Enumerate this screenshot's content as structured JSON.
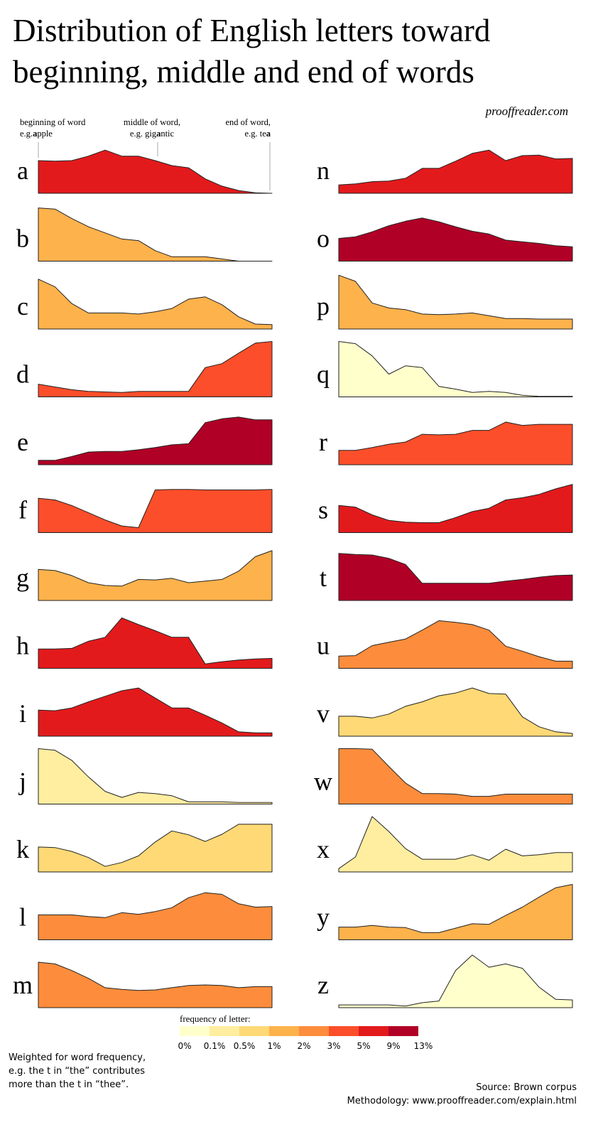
{
  "chart_data": {
    "type": "area",
    "title": [
      "Distribution of English letters toward",
      "beginning, middle and end of words"
    ],
    "site": "prooffreader.com",
    "annotations": [
      {
        "line1": "beginning of word",
        "prefix": "e.g.",
        "bold": "a",
        "suffix": "pple"
      },
      {
        "line1": "middle of word,",
        "prefix": "e.g. gig",
        "bold": "a",
        "suffix": "ntic"
      },
      {
        "line1": "end of word,",
        "prefix": "e.g. te",
        "bold": "a",
        "suffix": ""
      }
    ],
    "ylim": [
      0,
      100
    ],
    "series": [
      {
        "name": "a",
        "color": "#e31a1c",
        "values": [
          59,
          58,
          59,
          67,
          78,
          67,
          67,
          59,
          50,
          46,
          26,
          13,
          5,
          1,
          0
        ]
      },
      {
        "name": "b",
        "color": "#feb24c",
        "values": [
          96,
          94,
          77,
          62,
          51,
          40,
          37,
          19,
          8,
          8,
          8,
          4,
          0,
          0,
          0
        ]
      },
      {
        "name": "c",
        "color": "#feb24c",
        "values": [
          90,
          76,
          46,
          29,
          29,
          29,
          27,
          31,
          37,
          54,
          58,
          44,
          22,
          9,
          8
        ]
      },
      {
        "name": "d",
        "color": "#fc4e2a",
        "values": [
          23,
          18,
          13,
          10,
          9,
          8,
          10,
          10,
          10,
          10,
          53,
          60,
          79,
          97,
          100
        ]
      },
      {
        "name": "e",
        "color": "#b10026",
        "values": [
          8,
          8,
          15,
          23,
          24,
          24,
          27,
          31,
          36,
          38,
          76,
          83,
          86,
          81,
          81
        ]
      },
      {
        "name": "f",
        "color": "#fc4e2a",
        "values": [
          62,
          59,
          49,
          36,
          23,
          12,
          9,
          77,
          78,
          78,
          77,
          77,
          77,
          77,
          78
        ]
      },
      {
        "name": "g",
        "color": "#feb24c",
        "values": [
          56,
          54,
          45,
          32,
          27,
          26,
          38,
          37,
          40,
          32,
          35,
          38,
          53,
          79,
          90
        ]
      },
      {
        "name": "h",
        "color": "#e31a1c",
        "values": [
          35,
          35,
          36,
          49,
          56,
          91,
          79,
          68,
          56,
          56,
          8,
          12,
          15,
          17,
          18
        ]
      },
      {
        "name": "i",
        "color": "#e31a1c",
        "values": [
          47,
          46,
          51,
          62,
          72,
          82,
          87,
          69,
          51,
          51,
          38,
          24,
          8,
          6,
          6
        ]
      },
      {
        "name": "j",
        "color": "#ffeda0",
        "values": [
          100,
          97,
          79,
          49,
          23,
          12,
          21,
          19,
          15,
          4,
          4,
          4,
          3,
          3,
          3
        ]
      },
      {
        "name": "k",
        "color": "#fed976",
        "values": [
          45,
          44,
          37,
          26,
          10,
          17,
          29,
          54,
          74,
          67,
          55,
          68,
          86,
          86,
          86
        ]
      },
      {
        "name": "l",
        "color": "#fd8d3c",
        "values": [
          45,
          45,
          45,
          42,
          40,
          49,
          46,
          51,
          58,
          76,
          85,
          82,
          65,
          59,
          60
        ]
      },
      {
        "name": "m",
        "color": "#fd8d3c",
        "values": [
          82,
          79,
          67,
          53,
          36,
          33,
          31,
          32,
          36,
          40,
          41,
          40,
          36,
          38,
          38
        ]
      },
      {
        "name": "n",
        "color": "#e31a1c",
        "values": [
          15,
          17,
          21,
          22,
          27,
          45,
          45,
          58,
          72,
          78,
          59,
          68,
          69,
          62,
          63
        ]
      },
      {
        "name": "o",
        "color": "#b10026",
        "values": [
          41,
          44,
          53,
          64,
          72,
          78,
          71,
          62,
          54,
          49,
          38,
          35,
          32,
          28,
          26
        ]
      },
      {
        "name": "p",
        "color": "#feb24c",
        "values": [
          97,
          86,
          47,
          38,
          35,
          27,
          26,
          27,
          29,
          24,
          19,
          19,
          18,
          18,
          18
        ]
      },
      {
        "name": "q",
        "color": "#ffffcc",
        "values": [
          100,
          96,
          74,
          41,
          56,
          53,
          19,
          14,
          8,
          10,
          8,
          3,
          1,
          1,
          1
        ]
      },
      {
        "name": "r",
        "color": "#fc4e2a",
        "values": [
          26,
          26,
          31,
          37,
          41,
          55,
          54,
          55,
          62,
          62,
          77,
          71,
          73,
          73,
          73
        ]
      },
      {
        "name": "s",
        "color": "#e31a1c",
        "values": [
          49,
          46,
          32,
          22,
          19,
          18,
          18,
          27,
          38,
          44,
          59,
          63,
          69,
          79,
          87
        ]
      },
      {
        "name": "t",
        "color": "#b10026",
        "values": [
          85,
          83,
          82,
          76,
          65,
          31,
          31,
          31,
          31,
          31,
          35,
          38,
          42,
          45,
          46
        ]
      },
      {
        "name": "u",
        "color": "#fd8d3c",
        "values": [
          22,
          23,
          41,
          47,
          53,
          69,
          86,
          83,
          79,
          69,
          40,
          31,
          21,
          13,
          13
        ]
      },
      {
        "name": "v",
        "color": "#fed976",
        "values": [
          36,
          36,
          33,
          40,
          54,
          62,
          73,
          78,
          87,
          77,
          76,
          35,
          17,
          8,
          5
        ]
      },
      {
        "name": "w",
        "color": "#fd8d3c",
        "values": [
          100,
          100,
          99,
          68,
          38,
          19,
          19,
          18,
          14,
          14,
          18,
          18,
          18,
          18,
          18
        ]
      },
      {
        "name": "x",
        "color": "#ffeda0",
        "values": [
          6,
          27,
          100,
          73,
          42,
          23,
          23,
          23,
          31,
          21,
          41,
          29,
          31,
          35,
          35
        ]
      },
      {
        "name": "y",
        "color": "#feb24c",
        "values": [
          23,
          23,
          26,
          23,
          22,
          13,
          13,
          21,
          29,
          28,
          44,
          59,
          77,
          94,
          100
        ]
      },
      {
        "name": "z",
        "color": "#ffffcc",
        "values": [
          5,
          5,
          5,
          5,
          3,
          9,
          12,
          67,
          95,
          73,
          79,
          71,
          37,
          15,
          14
        ]
      }
    ],
    "legend": {
      "title": "frequency of letter:",
      "colors": [
        "#ffffcc",
        "#ffeda0",
        "#fed976",
        "#feb24c",
        "#fd8d3c",
        "#fc4e2a",
        "#e31a1c",
        "#b10026"
      ],
      "ticks": [
        {
          "value": 0,
          "label": "0%"
        },
        {
          "value": 0.1,
          "label": "0.1%"
        },
        {
          "value": 0.5,
          "label": "0.5%"
        },
        {
          "value": 1,
          "label": "1%"
        },
        {
          "value": 2,
          "label": "2%"
        },
        {
          "value": 3,
          "label": "3%"
        },
        {
          "value": 5,
          "label": "5%"
        },
        {
          "value": 9,
          "label": "9%"
        },
        {
          "value": 13,
          "label": "13%"
        }
      ]
    },
    "note": [
      "Weighted for word frequency,",
      "e.g. the t in “the” contributes",
      "more than the t in “thee”."
    ],
    "source": [
      "Source: Brown corpus",
      "Methodology: www.prooffreader.com/explain.html"
    ]
  }
}
